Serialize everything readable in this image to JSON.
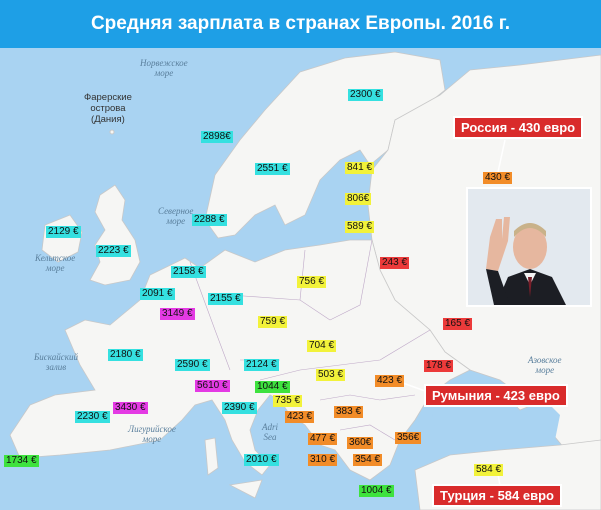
{
  "title": "Средняя зарплата в странах Европы. 2016 г.",
  "colors": {
    "header": "#1e9fe6",
    "cyan": "#35e0e0",
    "yellow": "#f2f23a",
    "orange": "#f28c28",
    "red": "#ec3a3a",
    "magenta": "#e43ae4",
    "green": "#3ee23e",
    "callout": "#d92b2b"
  },
  "salary_labels": [
    {
      "name": "norway",
      "text": "2898€",
      "color": "cyan"
    },
    {
      "name": "sweden",
      "text": "2551 €",
      "color": "cyan"
    },
    {
      "name": "finland",
      "text": "2300 €",
      "color": "cyan"
    },
    {
      "name": "denmark",
      "text": "2288 €",
      "color": "cyan"
    },
    {
      "name": "ireland",
      "text": "2129 €",
      "color": "cyan"
    },
    {
      "name": "uk",
      "text": "2223 €",
      "color": "cyan"
    },
    {
      "name": "netherlands",
      "text": "2158 €",
      "color": "cyan"
    },
    {
      "name": "belgium",
      "text": "2091 €",
      "color": "cyan"
    },
    {
      "name": "germany",
      "text": "2155 €",
      "color": "cyan"
    },
    {
      "name": "luxembourg",
      "text": "3149 €",
      "color": "magenta"
    },
    {
      "name": "france",
      "text": "2180 €",
      "color": "cyan"
    },
    {
      "name": "switzerland",
      "text": "5610 €",
      "color": "magenta"
    },
    {
      "name": "austria",
      "text": "2590 €",
      "color": "cyan"
    },
    {
      "name": "czech",
      "text": "759 €",
      "color": "yellow"
    },
    {
      "name": "czech-region",
      "text": "2124 €",
      "color": "cyan"
    },
    {
      "name": "italy",
      "text": "2390 €",
      "color": "cyan"
    },
    {
      "name": "monaco",
      "text": "3430 €",
      "color": "magenta"
    },
    {
      "name": "andorra",
      "text": "2230 €",
      "color": "cyan"
    },
    {
      "name": "portugal",
      "text": "1734 €",
      "color": "green"
    },
    {
      "name": "slovenia",
      "text": "1044 €",
      "color": "green"
    },
    {
      "name": "croatia",
      "text": "735 €",
      "color": "yellow"
    },
    {
      "name": "bosnia",
      "text": "423 €",
      "color": "orange"
    },
    {
      "name": "serbia",
      "text": "383 €",
      "color": "orange"
    },
    {
      "name": "montenegro",
      "text": "477 €",
      "color": "orange"
    },
    {
      "name": "kosovo",
      "text": "360€",
      "color": "orange"
    },
    {
      "name": "albania",
      "text": "310 €",
      "color": "orange"
    },
    {
      "name": "macedonia",
      "text": "354 €",
      "color": "orange"
    },
    {
      "name": "bulgaria",
      "text": "356€",
      "color": "orange"
    },
    {
      "name": "greece",
      "text": "1004 €",
      "color": "green"
    },
    {
      "name": "malta",
      "text": "2010 €",
      "color": "cyan"
    },
    {
      "name": "slovakia",
      "text": "704 €",
      "color": "yellow"
    },
    {
      "name": "hungary",
      "text": "503 €",
      "color": "yellow"
    },
    {
      "name": "romania",
      "text": "423 €",
      "color": "orange"
    },
    {
      "name": "moldova",
      "text": "178 €",
      "color": "red"
    },
    {
      "name": "ukraine",
      "text": "165 €",
      "color": "red"
    },
    {
      "name": "poland",
      "text": "756 €",
      "color": "yellow"
    },
    {
      "name": "belarus",
      "text": "243 €",
      "color": "red"
    },
    {
      "name": "estonia",
      "text": "841 €",
      "color": "yellow"
    },
    {
      "name": "latvia",
      "text": "806€",
      "color": "yellow"
    },
    {
      "name": "lithuania",
      "text": "589 €",
      "color": "yellow"
    },
    {
      "name": "russia",
      "text": "430 €",
      "color": "orange"
    },
    {
      "name": "turkey",
      "text": "584 €",
      "color": "yellow"
    }
  ],
  "sea_labels": [
    {
      "name": "norwegian-sea",
      "text": "Норвежское\nморе"
    },
    {
      "name": "north-sea",
      "text": "Северное\nморе"
    },
    {
      "name": "celtic-sea",
      "text": "Кельтское\nморе"
    },
    {
      "name": "biscay",
      "text": "Бискайский\nзалив"
    },
    {
      "name": "ligurian-sea",
      "text": "Лигурийское\nморе"
    },
    {
      "name": "adriatic-sea",
      "text": "Adri\nSea"
    },
    {
      "name": "azov-sea",
      "text": "Азовское\nморе"
    }
  ],
  "place_labels": [
    {
      "name": "faroe",
      "text": "Фарерские\nострова\n(Дания)"
    }
  ],
  "callouts": [
    {
      "name": "russia-callout",
      "text": "Россия - 430 евро"
    },
    {
      "name": "romania-callout",
      "text": "Румыния - 423 евро"
    },
    {
      "name": "turkey-callout",
      "text": "Турция - 584 евро"
    }
  ],
  "photo": {
    "name": "person-photo-icon"
  }
}
